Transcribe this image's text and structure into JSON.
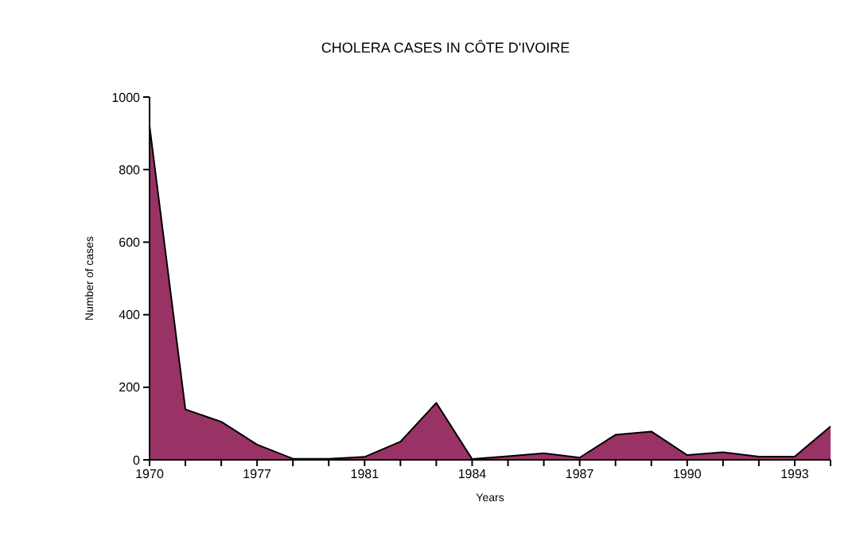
{
  "chart_data": {
    "type": "area",
    "title": "CHOLERA CASES IN CÔTE D'IVOIRE",
    "xlabel": "Years",
    "ylabel": "Number of cases",
    "categories": [
      "1970",
      null,
      null,
      "1977",
      null,
      null,
      "1981",
      null,
      null,
      "1984",
      null,
      null,
      "1987",
      null,
      null,
      "1990",
      null,
      null,
      "1993",
      null
    ],
    "series": [
      {
        "color": "#993366",
        "values": [
          920,
          139,
          105,
          42,
          3,
          3,
          8,
          50,
          157,
          2,
          10,
          18,
          6,
          69,
          78,
          13,
          21,
          9,
          9,
          92
        ]
      }
    ],
    "ylim": [
      0,
      1000
    ],
    "yticks": [
      0,
      200,
      400,
      600,
      800,
      1000
    ],
    "grid": false,
    "legend": false
  }
}
